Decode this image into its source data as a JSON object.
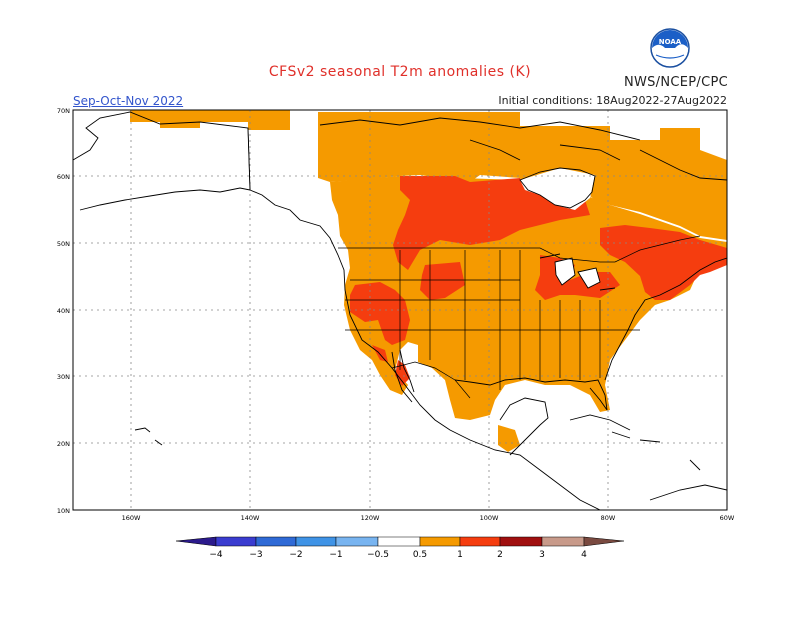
{
  "title": "CFSv2 seasonal T2m anomalies (K)",
  "organization": "NWS/NCEP/CPC",
  "logo_text": "NOAA",
  "season": "Sep-Oct-Nov 2022",
  "initial_conditions": "Initial conditions: 18Aug2022-27Aug2022",
  "lat_labels": [
    "70N",
    "60N",
    "50N",
    "40N",
    "30N",
    "20N",
    "10N"
  ],
  "lon_labels": [
    "160W",
    "140W",
    "120W",
    "100W",
    "80W",
    "60W"
  ],
  "legend": {
    "ticks": [
      "−4",
      "−3",
      "−2",
      "−1",
      "−0.5",
      "0.5",
      "1",
      "2",
      "3",
      "4"
    ],
    "colors": [
      "#2b1a8c",
      "#3a3cd0",
      "#2f6ad6",
      "#3f93e6",
      "#78b4f0",
      "#ffffff",
      "#f59a00",
      "#f53d0f",
      "#a00f0f",
      "#c89a8a",
      "#7a4a40"
    ]
  },
  "colors": {
    "title": "#e0302a",
    "land_outline": "#000000",
    "grid": "#888888",
    "anom_05_1": "#f59a00",
    "anom_1_2": "#f53d0f"
  }
}
